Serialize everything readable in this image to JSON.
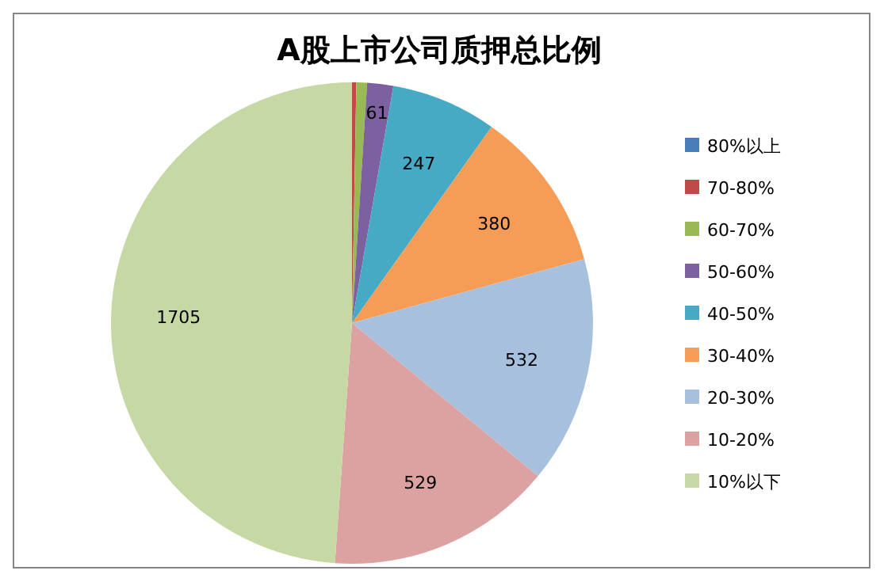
{
  "chart_data": {
    "type": "pie",
    "title": "A股上市公司质押总比例",
    "categories": [
      "80%以上",
      "70-80%",
      "60-70%",
      "50-60%",
      "40-50%",
      "30-40%",
      "20-30%",
      "10-20%",
      "10%以下"
    ],
    "values": [
      null,
      10,
      25,
      61,
      247,
      380,
      532,
      529,
      1705
    ],
    "value_labels": [
      null,
      null,
      null,
      "61",
      "247",
      "380",
      "532",
      "529",
      "1705"
    ],
    "colors": [
      "#4a7ebb",
      "#be4b48",
      "#98b954",
      "#7d60a0",
      "#46aac5",
      "#f59d56",
      "#a7c0de",
      "#dca2a1",
      "#c6d8a3"
    ],
    "legend": "right"
  }
}
